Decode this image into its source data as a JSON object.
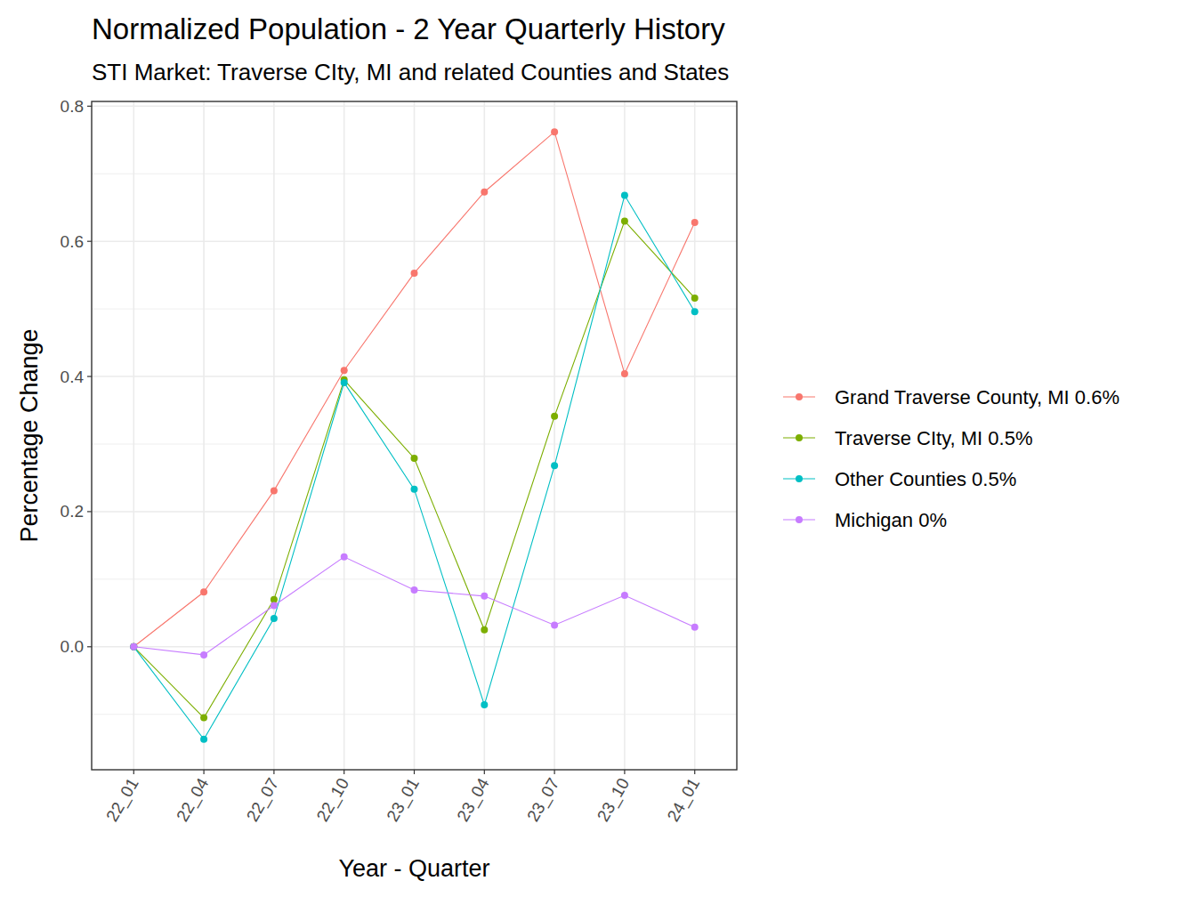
{
  "chart_data": {
    "type": "line",
    "title": "Normalized Population - 2 Year Quarterly History",
    "subtitle": "STI Market: Traverse CIty, MI and related Counties and States",
    "x_label": "Year - Quarter",
    "y_label": "Percentage Change",
    "categories": [
      "22_01",
      "22_04",
      "22_07",
      "22_10",
      "23_01",
      "23_04",
      "23_07",
      "23_10",
      "24_01"
    ],
    "series": [
      {
        "name": "Grand Traverse County, MI 0.6%",
        "color": "#F8766D",
        "values": [
          0,
          0.081,
          0.231,
          0.409,
          0.553,
          0.673,
          0.762,
          0.404,
          0.628
        ]
      },
      {
        "name": "Traverse CIty, MI 0.5%",
        "color": "#7CAE00",
        "values": [
          0,
          -0.105,
          0.07,
          0.395,
          0.279,
          0.025,
          0.341,
          0.63,
          0.516
        ]
      },
      {
        "name": "Other Counties 0.5%",
        "color": "#00BFC4",
        "values": [
          0,
          -0.137,
          0.042,
          0.391,
          0.233,
          -0.086,
          0.268,
          0.668,
          0.496
        ]
      },
      {
        "name": "Michigan 0%",
        "color": "#C77CFF",
        "values": [
          0,
          -0.012,
          0.061,
          0.133,
          0.084,
          0.075,
          0.032,
          0.076,
          0.029
        ]
      }
    ],
    "ylim": [
      -0.182,
      0.807
    ],
    "yticks": [
      {
        "value": 0,
        "label": "0.0"
      },
      0.2,
      0.4,
      0.6,
      0.8
    ],
    "grid": true,
    "legend": "right",
    "marker": "circle",
    "line_style": "solid"
  }
}
